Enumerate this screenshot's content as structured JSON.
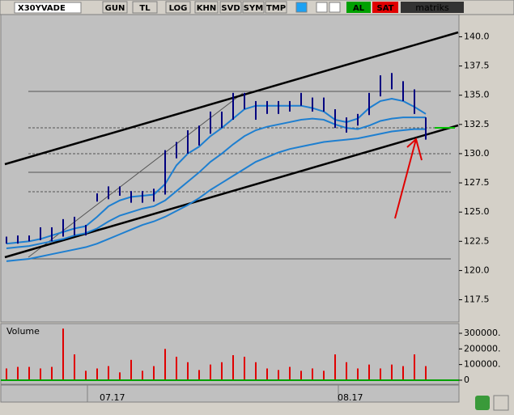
{
  "toolbar": {
    "symbol": "X30YVADE",
    "buttons": [
      "GUN",
      "TL",
      "LOG",
      "KHN",
      "SVD",
      "SYM",
      "TMP"
    ],
    "buy": "AL",
    "sell": "SAT",
    "brand": "matriks"
  },
  "chart_data": [
    {
      "type": "ohlc",
      "categories": [
        null,
        null,
        null,
        null,
        null,
        null,
        null,
        null,
        "07.17",
        null,
        null,
        null,
        null,
        null,
        null,
        null,
        null,
        null,
        null,
        null,
        null,
        null,
        null,
        null,
        null,
        null,
        null,
        null,
        null,
        "08.17",
        null,
        null,
        null,
        null,
        null,
        null,
        null,
        null
      ],
      "high": [
        122.9,
        123.0,
        123.0,
        123.7,
        123.7,
        124.4,
        124.6,
        123.9,
        126.6,
        127.2,
        127.2,
        126.8,
        126.8,
        127.0,
        130.3,
        131.0,
        132.0,
        132.4,
        133.6,
        133.6,
        135.2,
        135.2,
        134.5,
        134.5,
        134.5,
        134.5,
        135.2,
        134.8,
        134.8,
        133.8,
        133.1,
        133.4,
        135.2,
        136.7,
        136.9,
        136.2,
        135.5,
        133.1
      ],
      "low": [
        122.3,
        122.3,
        122.5,
        122.6,
        122.5,
        122.9,
        123.0,
        123.0,
        125.9,
        126.1,
        126.4,
        125.8,
        125.8,
        125.9,
        126.5,
        129.6,
        130.0,
        130.7,
        131.7,
        132.2,
        132.9,
        133.8,
        132.9,
        133.4,
        133.4,
        133.6,
        134.1,
        133.6,
        133.6,
        132.2,
        131.8,
        132.4,
        133.3,
        134.9,
        135.5,
        134.5,
        133.4,
        131.2
      ],
      "color": "#000080",
      "series": [
        {
          "color": "#1e7fd0",
          "values": [
            122.3,
            122.4,
            122.5,
            122.7,
            123.0,
            123.3,
            123.6,
            123.8,
            124.6,
            125.5,
            126.0,
            126.3,
            126.4,
            126.5,
            127.4,
            129.0,
            130.0,
            130.6,
            131.5,
            132.2,
            133.0,
            133.8,
            134.1,
            134.1,
            134.1,
            134.1,
            134.1,
            133.9,
            133.6,
            132.9,
            132.7,
            133.0,
            133.9,
            134.5,
            134.7,
            134.5,
            134.0,
            133.4
          ]
        },
        {
          "color": "#1e7fd0",
          "values": [
            121.9,
            122.0,
            122.1,
            122.3,
            122.5,
            122.7,
            123.0,
            123.2,
            123.6,
            124.2,
            124.7,
            125.0,
            125.3,
            125.5,
            126.0,
            126.8,
            127.6,
            128.4,
            129.3,
            130.0,
            130.8,
            131.5,
            132.0,
            132.3,
            132.5,
            132.7,
            132.9,
            133.0,
            132.9,
            132.5,
            132.2,
            132.1,
            132.4,
            132.8,
            133.0,
            133.1,
            133.1,
            133.1
          ]
        },
        {
          "color": "#1e7fd0",
          "values": [
            120.8,
            120.9,
            121.0,
            121.2,
            121.4,
            121.6,
            121.8,
            122.0,
            122.3,
            122.7,
            123.1,
            123.5,
            123.9,
            124.2,
            124.6,
            125.1,
            125.6,
            126.2,
            126.9,
            127.5,
            128.1,
            128.7,
            129.3,
            129.7,
            130.1,
            130.4,
            130.6,
            130.8,
            131.0,
            131.1,
            131.2,
            131.3,
            131.5,
            131.7,
            131.9,
            132.0,
            132.1,
            132.1
          ]
        }
      ],
      "ylim": [
        115.6,
        141.9
      ],
      "yticks": [
        {
          "value": 140,
          "label": "140.0"
        },
        137.5,
        {
          "value": 135,
          "label": "135.0"
        },
        132.5,
        {
          "value": 130,
          "label": "130.0"
        },
        127.5,
        {
          "value": 125,
          "label": "125.0"
        },
        122.5,
        {
          "value": 120,
          "label": "120.0"
        },
        117.5
      ]
    },
    {
      "type": "bar",
      "title": "Volume",
      "values": [
        75000,
        85000,
        85000,
        75000,
        85000,
        330000,
        165000,
        60000,
        75000,
        90000,
        50000,
        130000,
        60000,
        90000,
        200000,
        150000,
        115000,
        65000,
        100000,
        115000,
        160000,
        150000,
        115000,
        75000,
        65000,
        85000,
        60000,
        75000,
        60000,
        165000,
        115000,
        75000,
        100000,
        75000,
        100000,
        90000,
        165000,
        90000
      ],
      "color": "#e00000",
      "ylim": [
        -26000,
        362000
      ],
      "yticks": [
        {
          "value": 300000,
          "label": "300000."
        },
        {
          "value": 200000,
          "label": "200000."
        },
        {
          "value": 100000,
          "label": "100000."
        },
        0
      ]
    }
  ]
}
